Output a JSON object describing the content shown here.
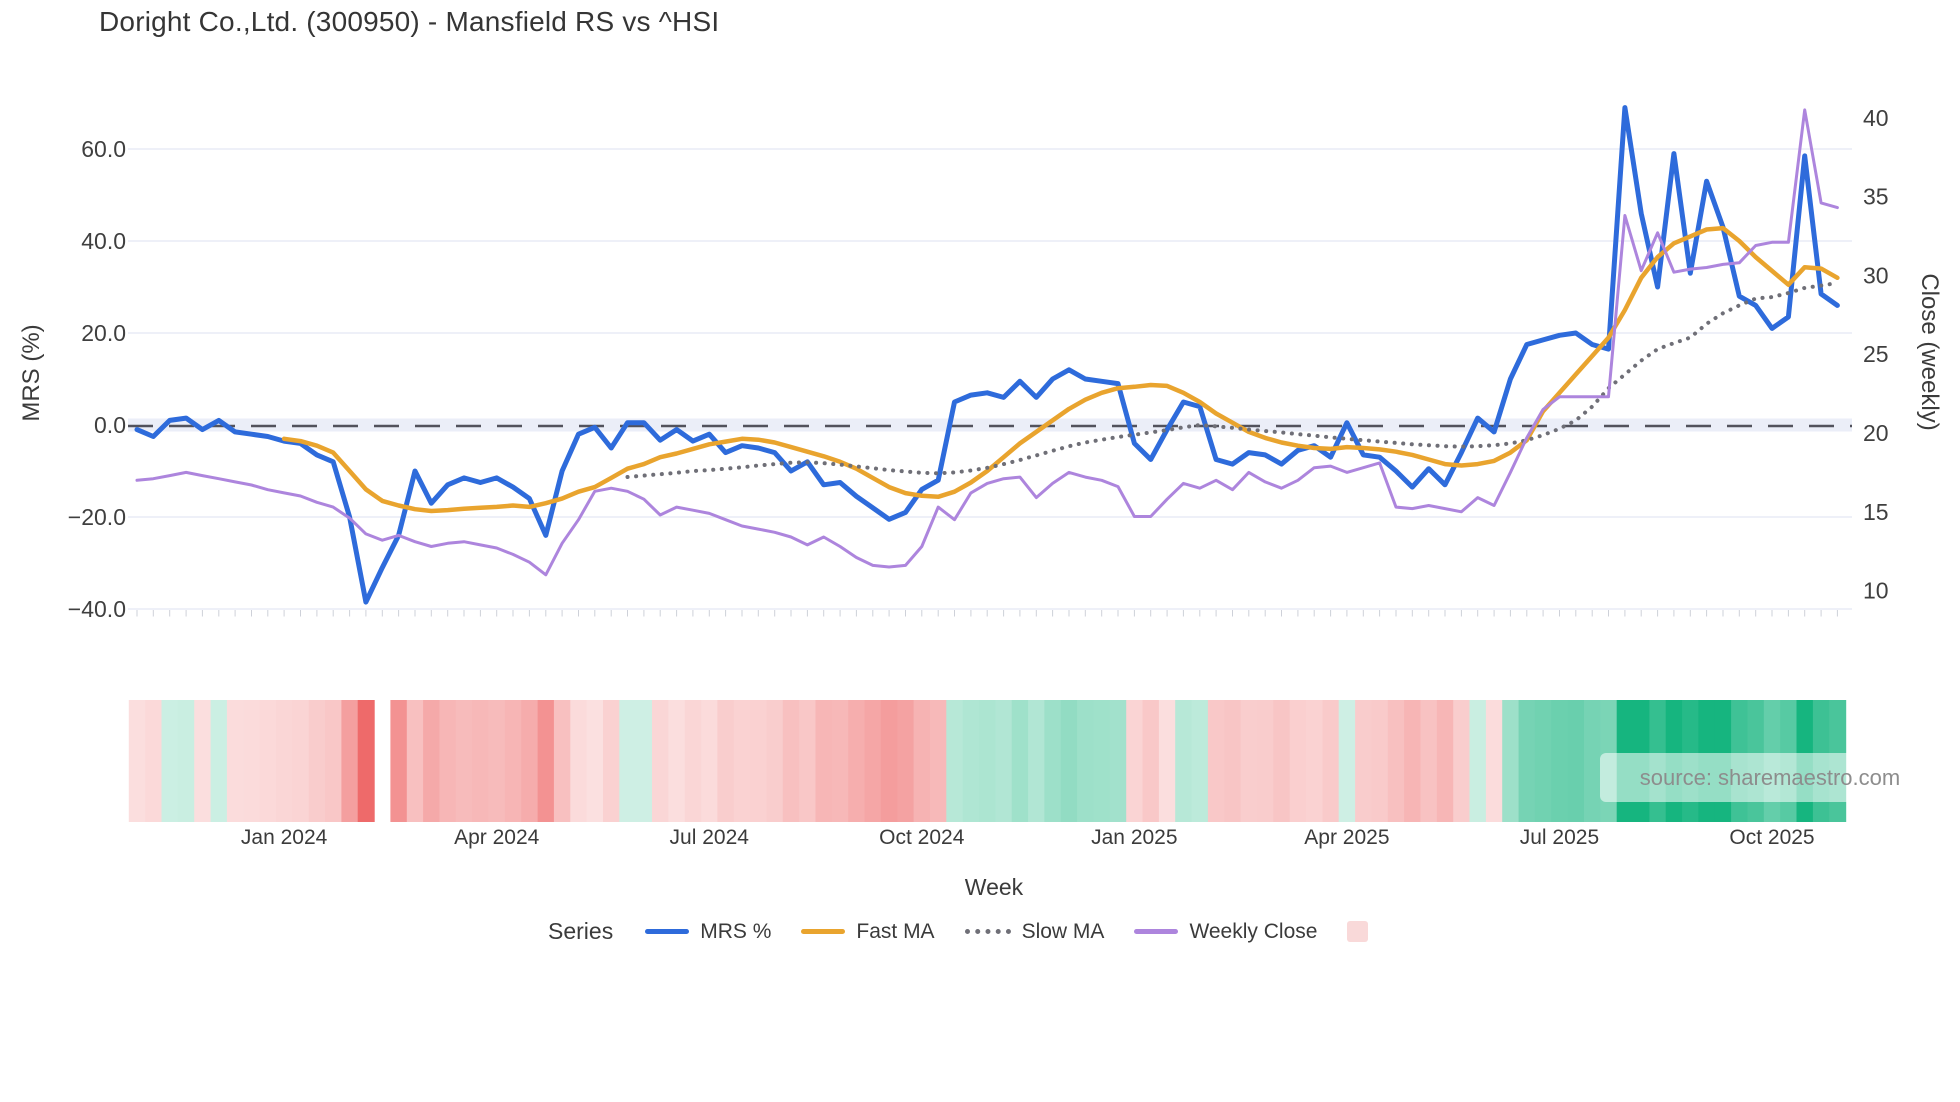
{
  "title": "Doright Co.,Ltd. (300950) - Mansfield RS vs ^HSI",
  "watermark": "source: sharemaestro.com",
  "axes": {
    "left": {
      "title": "MRS (%)",
      "ticks": [
        "60.0",
        "40.0",
        "20.0",
        "0.0",
        "−20.0",
        "−40.0"
      ],
      "tick_values": [
        60,
        40,
        20,
        0,
        -20,
        -40
      ]
    },
    "right": {
      "title": "Close (weekly)",
      "ticks": [
        "40",
        "35",
        "30",
        "25",
        "20",
        "15",
        "10"
      ],
      "tick_values": [
        40,
        35,
        30,
        25,
        20,
        15,
        10
      ]
    },
    "x": {
      "title": "Week",
      "tick_labels": [
        "Jan 2024",
        "Apr 2024",
        "Jul 2024",
        "Oct 2024",
        "Jan 2025",
        "Apr 2025",
        "Jul 2025",
        "Oct 2025"
      ],
      "tick_week_indices": [
        9,
        22,
        35,
        48,
        61,
        74,
        87,
        100
      ]
    }
  },
  "legend": {
    "title": "Series",
    "heatmap_swatch_color": "#f9d9d9"
  },
  "chart_data": {
    "type": "line",
    "title": "Doright Co.,Ltd. (300950) - Mansfield RS vs ^HSI",
    "xlabel": "Week",
    "ylabel_left": "MRS (%)",
    "ylabel_right": "Close (weekly)",
    "n_points": 105,
    "x_tick_labels": [
      "Jan 2024",
      "Apr 2024",
      "Jul 2024",
      "Oct 2024",
      "Jan 2025",
      "Apr 2025",
      "Jul 2025",
      "Oct 2025"
    ],
    "x_tick_indices": [
      9,
      22,
      35,
      48,
      61,
      74,
      87,
      100
    ],
    "ylim_left": [
      -45,
      72
    ],
    "ylim_right": [
      9.5,
      41.5
    ],
    "grid": true,
    "zero_dashed_line_left_axis": 0,
    "legend_position": "bottom",
    "series": [
      {
        "name": "MRS %",
        "axis": "left",
        "color": "#2e6bdb",
        "style": "solid",
        "width": 5,
        "values": [
          -1,
          -2.5,
          1,
          1.5,
          -1,
          1,
          -1.5,
          -2,
          -2.5,
          -3.5,
          -4,
          -6.5,
          -8,
          -20,
          -38.5,
          -31,
          -24,
          -10,
          -17,
          -13,
          -11.5,
          -12.5,
          -11.5,
          -13.5,
          -16,
          -24,
          -10,
          -2,
          -0.5,
          -5,
          0.5,
          0.5,
          -3.3,
          -1,
          -3.5,
          -2,
          -6,
          -4.5,
          -5,
          -6,
          -10,
          -8,
          -13,
          -12.5,
          -15.5,
          -18,
          -20.5,
          -19,
          -14,
          -12,
          5,
          6.5,
          7,
          6,
          9.5,
          6,
          10,
          12,
          10,
          9.5,
          9,
          -4,
          -7.5,
          -1,
          5,
          4,
          -7.5,
          -8.5,
          -6,
          -6.5,
          -8.5,
          -5.5,
          -4.5,
          -7,
          0.5,
          -6.5,
          -7,
          -10,
          -13.5,
          -9.5,
          -13,
          -6,
          1.5,
          -1.5,
          10,
          17.5,
          18.5,
          19.5,
          20,
          17.5,
          16.5,
          69,
          46,
          30,
          59,
          33,
          53,
          43,
          28,
          26,
          21,
          23.5,
          58.5,
          28.5,
          26
        ]
      },
      {
        "name": "Fast MA",
        "axis": "left",
        "color": "#e9a42e",
        "style": "solid",
        "width": 4.5,
        "values": [
          null,
          null,
          null,
          null,
          null,
          null,
          null,
          null,
          null,
          -3,
          -3.5,
          -4.5,
          -6,
          -10,
          -14,
          -16.5,
          -17.5,
          -18.3,
          -18.7,
          -18.5,
          -18.2,
          -18,
          -17.8,
          -17.5,
          -17.8,
          -17,
          -16,
          -14.5,
          -13.5,
          -11.5,
          -9.5,
          -8.5,
          -7,
          -6.2,
          -5.2,
          -4.2,
          -3.6,
          -3,
          -3.2,
          -3.8,
          -4.8,
          -5.8,
          -6.8,
          -8,
          -9.5,
          -11.5,
          -13.5,
          -14.8,
          -15.4,
          -15.6,
          -14.5,
          -12.5,
          -10,
          -7,
          -4,
          -1.5,
          1,
          3.5,
          5.5,
          7,
          8,
          8.3,
          8.7,
          8.5,
          7,
          5,
          2.5,
          0.5,
          -1.5,
          -2.8,
          -3.8,
          -4.5,
          -5,
          -5.2,
          -4.8,
          -5,
          -5.3,
          -5.8,
          -6.5,
          -7.5,
          -8.5,
          -8.8,
          -8.5,
          -7.8,
          -6,
          -3.3,
          3,
          7,
          11,
          15,
          19,
          25,
          32,
          36.5,
          39.5,
          41,
          42.5,
          42.8,
          40,
          36.5,
          33.5,
          30.5,
          34.3,
          34,
          32
        ]
      },
      {
        "name": "Slow MA",
        "axis": "left",
        "color": "#6f6f77",
        "style": "dotted",
        "width": 4,
        "values": [
          null,
          null,
          null,
          null,
          null,
          null,
          null,
          null,
          null,
          null,
          null,
          null,
          null,
          null,
          null,
          null,
          null,
          null,
          null,
          null,
          null,
          null,
          null,
          null,
          null,
          null,
          null,
          null,
          null,
          null,
          -11.3,
          -11,
          -10.7,
          -10.4,
          -10,
          -9.8,
          -9.5,
          -9.2,
          -8.8,
          -8.5,
          -8.2,
          -8.1,
          -8.3,
          -8.6,
          -9,
          -9.4,
          -9.8,
          -10.1,
          -10.4,
          -10.5,
          -10.3,
          -9.9,
          -9.3,
          -8.5,
          -7.6,
          -6.6,
          -5.6,
          -4.6,
          -3.8,
          -3.2,
          -2.6,
          -2.1,
          -1.6,
          -1.1,
          -0.5,
          0,
          -0.3,
          -0.6,
          -1,
          -1.3,
          -1.6,
          -2,
          -2.3,
          -2.7,
          -3,
          -3.3,
          -3.6,
          -3.9,
          -4.2,
          -4.4,
          -4.6,
          -4.7,
          -4.6,
          -4.4,
          -4,
          -3.3,
          -2.2,
          -0.8,
          1,
          4,
          8,
          11,
          14,
          16.5,
          17.8,
          19,
          22,
          24.3,
          26,
          27.5,
          27.8,
          28.7,
          29.8,
          30.3,
          30.9
        ]
      },
      {
        "name": "Weekly Close",
        "axis": "right",
        "color": "#ad85dd",
        "style": "solid",
        "width": 3,
        "values": [
          17,
          17.1,
          17.3,
          17.5,
          17.3,
          17.1,
          16.9,
          16.7,
          16.4,
          16.2,
          16,
          15.6,
          15.3,
          14.6,
          13.6,
          13.2,
          13.5,
          13.1,
          12.8,
          13,
          13.1,
          12.9,
          12.7,
          12.3,
          11.8,
          11,
          13,
          14.5,
          16.3,
          16.5,
          16.3,
          15.8,
          14.8,
          15.3,
          15.1,
          14.9,
          14.5,
          14.1,
          13.9,
          13.7,
          13.4,
          12.9,
          13.4,
          12.8,
          12.1,
          11.6,
          11.5,
          11.6,
          12.8,
          15.3,
          14.5,
          16.2,
          16.8,
          17.1,
          17.2,
          15.9,
          16.8,
          17.5,
          17.2,
          17,
          16.6,
          14.7,
          14.7,
          15.8,
          16.8,
          16.5,
          17,
          16.4,
          17.5,
          16.9,
          16.5,
          17,
          17.8,
          17.9,
          17.5,
          17.8,
          18.1,
          15.3,
          15.2,
          15.4,
          15.2,
          15,
          15.9,
          15.4,
          17.5,
          19.7,
          21.5,
          22.3,
          22.3,
          22.3,
          22.3,
          33.8,
          30.3,
          32.7,
          30.2,
          30.4,
          30.5,
          30.7,
          30.8,
          31.9,
          32.1,
          32.1,
          40.5,
          34.6,
          34.3
        ]
      }
    ],
    "heatmap": {
      "description": "weekly strip colored by MRS % sign/magnitude",
      "positive_color": "#16b57f",
      "negative_color": "#ee6a6a",
      "gap_weeks": [
        15
      ]
    }
  }
}
